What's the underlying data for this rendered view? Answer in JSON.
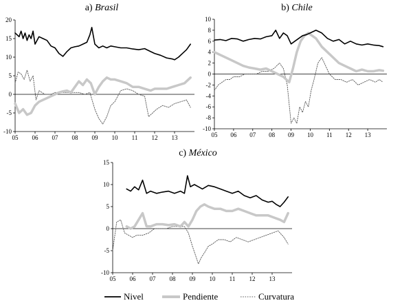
{
  "figure": {
    "legend": [
      {
        "name": "Nivel",
        "color": "#000000"
      },
      {
        "name": "Pendiente",
        "color": "#c8c8c8"
      },
      {
        "name": "Curvatura",
        "color": "#555555"
      }
    ]
  },
  "chart_data": [
    {
      "type": "line",
      "title_prefix": "a) ",
      "title_country": "Brasil",
      "ylim": [
        -10,
        20
      ],
      "yticks": [
        -10,
        -5,
        0,
        5,
        10,
        15,
        20
      ],
      "xlim": [
        2005,
        2014
      ],
      "xticks": [
        "05",
        "06",
        "07",
        "08",
        "09",
        "10",
        "11",
        "12",
        "13"
      ],
      "grid": false,
      "series": [
        {
          "name": "Nivel",
          "x": [
            2005.0,
            2005.1,
            2005.2,
            2005.3,
            2005.4,
            2005.5,
            2005.6,
            2005.7,
            2005.8,
            2005.9,
            2006.0,
            2006.2,
            2006.4,
            2006.6,
            2006.8,
            2007.0,
            2007.2,
            2007.4,
            2007.6,
            2007.8,
            2008.0,
            2008.2,
            2008.4,
            2008.6,
            2008.75,
            2008.85,
            2009.0,
            2009.2,
            2009.4,
            2009.6,
            2009.8,
            2010.0,
            2010.3,
            2010.6,
            2010.9,
            2011.2,
            2011.5,
            2011.8,
            2012.0,
            2012.3,
            2012.6,
            2012.9,
            2013.0,
            2013.2,
            2013.4,
            2013.6,
            2013.8
          ],
          "values": [
            16.5,
            16.0,
            15.5,
            17.0,
            15.0,
            16.5,
            14.5,
            16.0,
            15.0,
            17.0,
            13.5,
            15.5,
            15.0,
            14.5,
            13.0,
            12.5,
            11.0,
            10.2,
            11.5,
            12.5,
            12.8,
            13.0,
            13.5,
            14.0,
            16.0,
            18.0,
            13.5,
            12.5,
            13.0,
            12.5,
            13.0,
            12.8,
            12.5,
            12.5,
            12.2,
            12.0,
            12.3,
            11.5,
            11.0,
            10.5,
            9.8,
            9.5,
            9.3,
            10.0,
            11.0,
            12.0,
            13.5
          ]
        },
        {
          "name": "Pendiente",
          "x": [
            2005.0,
            2005.2,
            2005.4,
            2005.6,
            2005.8,
            2006.0,
            2006.2,
            2006.4,
            2006.6,
            2006.8,
            2007.0,
            2007.2,
            2007.4,
            2007.6,
            2007.8,
            2008.0,
            2008.2,
            2008.4,
            2008.6,
            2008.8,
            2009.0,
            2009.2,
            2009.4,
            2009.6,
            2009.8,
            2010.0,
            2010.3,
            2010.6,
            2010.9,
            2011.2,
            2011.5,
            2011.8,
            2012.0,
            2012.3,
            2012.6,
            2012.9,
            2013.2,
            2013.5,
            2013.8
          ],
          "values": [
            -2.5,
            -5.0,
            -4.0,
            -5.5,
            -5.0,
            -3.0,
            -2.0,
            -1.5,
            -1.0,
            -0.5,
            0.0,
            0.5,
            0.8,
            1.0,
            0.5,
            2.0,
            3.5,
            2.5,
            4.0,
            3.0,
            0.0,
            2.0,
            3.5,
            4.5,
            4.0,
            4.0,
            3.5,
            3.0,
            2.0,
            2.0,
            1.5,
            1.0,
            1.5,
            1.5,
            1.5,
            2.0,
            2.5,
            3.0,
            4.5
          ]
        },
        {
          "name": "Curvatura",
          "x": [
            2005.0,
            2005.15,
            2005.3,
            2005.45,
            2005.6,
            2005.75,
            2005.9,
            2006.05,
            2006.2,
            2006.35,
            2006.5,
            2006.8,
            2007.0,
            2007.3,
            2007.6,
            2007.9,
            2008.2,
            2008.5,
            2008.75,
            2009.0,
            2009.2,
            2009.4,
            2009.6,
            2009.8,
            2010.0,
            2010.3,
            2010.6,
            2010.9,
            2011.2,
            2011.5,
            2011.7,
            2011.9,
            2012.1,
            2012.4,
            2012.7,
            2013.0,
            2013.3,
            2013.6,
            2013.8
          ],
          "values": [
            3.0,
            6.0,
            5.5,
            4.0,
            6.5,
            3.5,
            5.0,
            -1.5,
            1.0,
            0.5,
            0.0,
            0.0,
            0.5,
            0.5,
            0.5,
            0.5,
            0.5,
            0.0,
            0.5,
            -4.0,
            -6.5,
            -8.0,
            -6.0,
            -3.0,
            -2.0,
            1.0,
            1.5,
            1.0,
            0.0,
            -0.5,
            -6.0,
            -5.0,
            -4.0,
            -3.0,
            -3.5,
            -2.5,
            -2.0,
            -1.5,
            -3.5
          ]
        }
      ]
    },
    {
      "type": "line",
      "title_prefix": "b) ",
      "title_country": "Chile",
      "ylim": [
        -10,
        10
      ],
      "yticks": [
        -10,
        -8,
        -6,
        -4,
        -2,
        0,
        2,
        4,
        6,
        8,
        10
      ],
      "xlim": [
        2005,
        2014
      ],
      "xticks": [
        "05",
        "06",
        "07",
        "08",
        "09",
        "10",
        "11",
        "12",
        "13"
      ],
      "grid": false,
      "series": [
        {
          "name": "Nivel",
          "x": [
            2005.0,
            2005.3,
            2005.6,
            2005.9,
            2006.2,
            2006.5,
            2006.8,
            2007.1,
            2007.4,
            2007.7,
            2008.0,
            2008.2,
            2008.4,
            2008.6,
            2008.8,
            2009.0,
            2009.2,
            2009.4,
            2009.6,
            2009.8,
            2010.0,
            2010.3,
            2010.6,
            2010.9,
            2011.2,
            2011.5,
            2011.8,
            2012.1,
            2012.4,
            2012.7,
            2013.0,
            2013.3,
            2013.6,
            2013.8
          ],
          "values": [
            6.2,
            6.3,
            6.1,
            6.5,
            6.4,
            6.0,
            6.3,
            6.5,
            6.4,
            6.8,
            7.0,
            8.0,
            6.5,
            7.5,
            7.0,
            5.5,
            6.0,
            6.5,
            7.0,
            7.2,
            7.5,
            8.0,
            7.5,
            6.5,
            6.0,
            6.3,
            5.5,
            6.0,
            5.5,
            5.3,
            5.5,
            5.3,
            5.2,
            5.0
          ]
        },
        {
          "name": "Pendiente",
          "x": [
            2005.0,
            2005.3,
            2005.6,
            2005.9,
            2006.2,
            2006.5,
            2006.8,
            2007.1,
            2007.4,
            2007.7,
            2008.0,
            2008.3,
            2008.6,
            2008.9,
            2009.1,
            2009.3,
            2009.5,
            2009.7,
            2009.9,
            2010.1,
            2010.3,
            2010.6,
            2010.9,
            2011.2,
            2011.5,
            2011.8,
            2012.1,
            2012.4,
            2012.7,
            2013.0,
            2013.3,
            2013.6,
            2013.8
          ],
          "values": [
            4.0,
            3.5,
            3.0,
            2.5,
            2.0,
            1.5,
            1.2,
            1.0,
            0.8,
            1.0,
            0.5,
            0.0,
            -0.5,
            -1.5,
            1.0,
            4.0,
            6.0,
            7.0,
            7.5,
            7.0,
            6.5,
            5.0,
            4.0,
            3.0,
            2.0,
            1.5,
            1.0,
            0.5,
            0.8,
            0.5,
            0.5,
            0.7,
            0.6
          ]
        },
        {
          "name": "Curvatura",
          "x": [
            2005.0,
            2005.2,
            2005.4,
            2005.6,
            2005.8,
            2006.0,
            2006.3,
            2006.6,
            2006.9,
            2007.2,
            2007.5,
            2007.8,
            2008.1,
            2008.4,
            2008.6,
            2008.8,
            2009.0,
            2009.15,
            2009.3,
            2009.45,
            2009.6,
            2009.75,
            2009.9,
            2010.05,
            2010.2,
            2010.4,
            2010.6,
            2010.8,
            2011.0,
            2011.3,
            2011.6,
            2011.9,
            2012.2,
            2012.5,
            2012.8,
            2013.1,
            2013.4,
            2013.6,
            2013.8
          ],
          "values": [
            -3.0,
            -2.0,
            -1.5,
            -1.0,
            -1.0,
            -0.5,
            -0.5,
            0.0,
            0.0,
            0.0,
            0.5,
            0.5,
            1.0,
            2.0,
            1.0,
            -2.0,
            -9.0,
            -8.0,
            -9.0,
            -6.0,
            -7.0,
            -5.0,
            -6.0,
            -3.0,
            -1.0,
            2.0,
            3.0,
            1.5,
            0.0,
            -1.0,
            -1.0,
            -1.5,
            -1.0,
            -2.0,
            -1.5,
            -1.0,
            -1.5,
            -1.0,
            -1.5
          ]
        }
      ]
    },
    {
      "type": "line",
      "title_prefix": "c) ",
      "title_country": "México",
      "ylim": [
        -10,
        15
      ],
      "yticks": [
        -10,
        -5,
        0,
        5,
        10,
        15
      ],
      "xlim": [
        2005,
        2014
      ],
      "xticks": [
        "05",
        "06",
        "07",
        "08",
        "09",
        "10",
        "11",
        "12",
        "13"
      ],
      "grid": false,
      "series": [
        {
          "name": "Nivel",
          "x": [
            2005.7,
            2005.9,
            2006.1,
            2006.3,
            2006.5,
            2006.7,
            2006.9,
            2007.2,
            2007.5,
            2007.8,
            2008.1,
            2008.4,
            2008.6,
            2008.75,
            2008.9,
            2009.1,
            2009.3,
            2009.5,
            2009.8,
            2010.1,
            2010.4,
            2010.7,
            2011.0,
            2011.3,
            2011.6,
            2011.9,
            2012.2,
            2012.5,
            2012.8,
            2013.0,
            2013.2,
            2013.4,
            2013.6,
            2013.8
          ],
          "values": [
            9.0,
            8.5,
            9.5,
            8.8,
            11.0,
            8.0,
            8.5,
            8.0,
            8.3,
            8.5,
            8.0,
            8.5,
            8.0,
            12.0,
            9.5,
            10.0,
            9.5,
            9.0,
            9.8,
            9.5,
            9.0,
            8.5,
            8.0,
            8.5,
            7.5,
            7.0,
            7.5,
            6.5,
            6.0,
            6.2,
            5.5,
            5.0,
            6.0,
            7.2
          ]
        },
        {
          "name": "Pendiente",
          "x": [
            2005.7,
            2005.9,
            2006.1,
            2006.3,
            2006.5,
            2006.7,
            2006.9,
            2007.2,
            2007.5,
            2007.8,
            2008.1,
            2008.4,
            2008.6,
            2008.8,
            2009.0,
            2009.2,
            2009.4,
            2009.6,
            2009.8,
            2010.1,
            2010.4,
            2010.7,
            2011.0,
            2011.3,
            2011.6,
            2011.9,
            2012.2,
            2012.5,
            2012.8,
            2013.1,
            2013.4,
            2013.6,
            2013.8
          ],
          "values": [
            0.5,
            0.0,
            0.5,
            2.0,
            3.5,
            0.5,
            0.5,
            1.0,
            1.0,
            0.8,
            1.0,
            0.5,
            1.5,
            0.5,
            2.0,
            4.0,
            5.0,
            5.5,
            5.0,
            4.5,
            4.5,
            4.0,
            4.0,
            4.5,
            4.0,
            3.5,
            3.0,
            3.0,
            3.0,
            2.5,
            2.0,
            1.5,
            3.5
          ]
        },
        {
          "name": "Curvatura",
          "x": [
            2005.0,
            2005.2,
            2005.4,
            2005.6,
            2005.8,
            2006.0,
            2006.2,
            2006.5,
            2006.8,
            2007.1,
            2007.4,
            2007.7,
            2008.0,
            2008.3,
            2008.6,
            2008.8,
            2009.0,
            2009.15,
            2009.3,
            2009.45,
            2009.6,
            2009.8,
            2010.0,
            2010.3,
            2010.6,
            2010.9,
            2011.2,
            2011.5,
            2011.8,
            2012.1,
            2012.4,
            2012.7,
            2013.0,
            2013.3,
            2013.6,
            2013.8
          ],
          "values": [
            -5.0,
            1.5,
            2.0,
            -1.0,
            -1.5,
            -2.0,
            -1.5,
            -1.5,
            -1.0,
            0.0,
            0.0,
            0.0,
            0.5,
            0.5,
            0.5,
            -1.0,
            -4.0,
            -6.0,
            -8.0,
            -6.5,
            -5.5,
            -4.0,
            -3.5,
            -2.5,
            -2.5,
            -3.0,
            -2.0,
            -2.5,
            -3.0,
            -2.5,
            -2.0,
            -1.5,
            -1.0,
            -0.5,
            -2.0,
            -3.5
          ]
        }
      ]
    }
  ]
}
